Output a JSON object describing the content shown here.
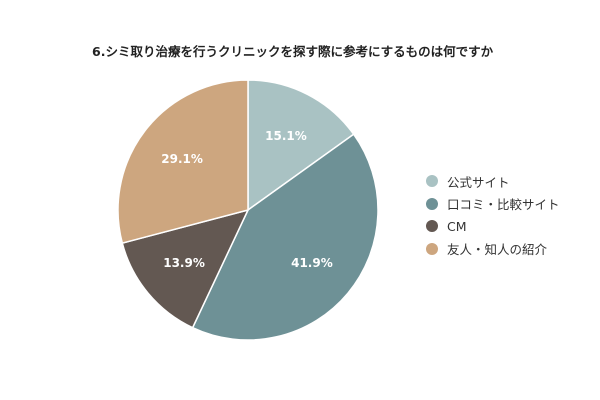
{
  "chart_data": {
    "type": "pie",
    "title": "6.シミ取り治療を行うクリニックを探す際に参考にするものは何ですか",
    "categories": [
      "公式サイト",
      "口コミ・比較サイト",
      "CM",
      "友人・知人の紹介"
    ],
    "values": [
      15.1,
      41.9,
      13.9,
      29.1
    ],
    "labels": [
      "15.1%",
      "41.9%",
      "13.9%",
      "29.1%"
    ],
    "colors": [
      "#a9c2c3",
      "#6e9196",
      "#635852",
      "#cda67f"
    ],
    "start_angle": "12 o'clock",
    "direction": "clockwise",
    "legend_position": "right"
  }
}
